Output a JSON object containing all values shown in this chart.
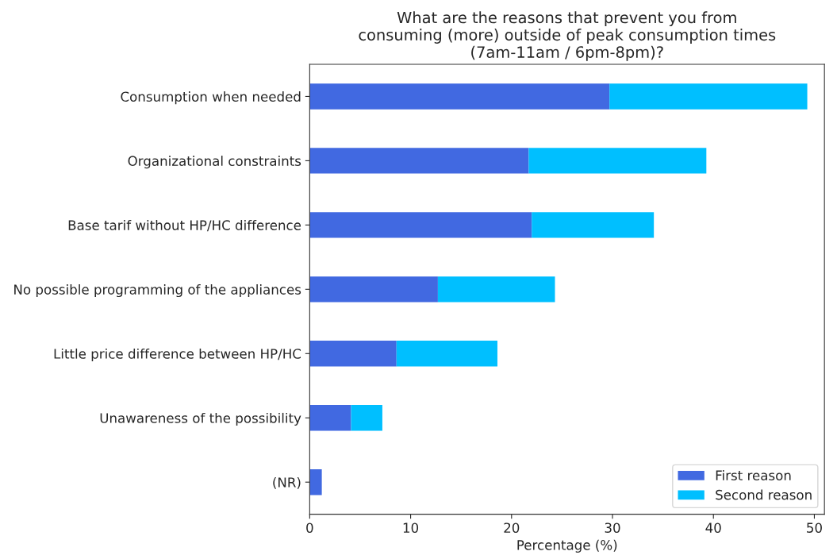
{
  "chart_data": {
    "type": "bar",
    "orientation": "horizontal",
    "stacked": true,
    "title": "What are the reasons that prevent you from\nconsuming (more) outside of peak consumption times\n(7am-11am / 6pm-8pm)?",
    "xlabel": "Percentage (%)",
    "categories": [
      "Consumption when needed",
      "Organizational constraints",
      "Base tarif without HP/HC difference",
      "No possible programming of the appliances",
      "Little price difference between HP/HC",
      "Unawareness of the possibility",
      "(NR)"
    ],
    "series": [
      {
        "name": "First reason",
        "color": "#4169e1",
        "values": [
          29.7,
          21.7,
          22.0,
          12.7,
          8.6,
          4.1,
          1.2
        ]
      },
      {
        "name": "Second reason",
        "color": "#00bfff",
        "values": [
          19.6,
          17.6,
          12.1,
          11.6,
          10.0,
          3.1,
          null
        ]
      }
    ],
    "xlim": [
      0,
      51
    ],
    "xticks": [
      0,
      10,
      20,
      30,
      40,
      50
    ],
    "legend": "lower right",
    "grid": false
  }
}
